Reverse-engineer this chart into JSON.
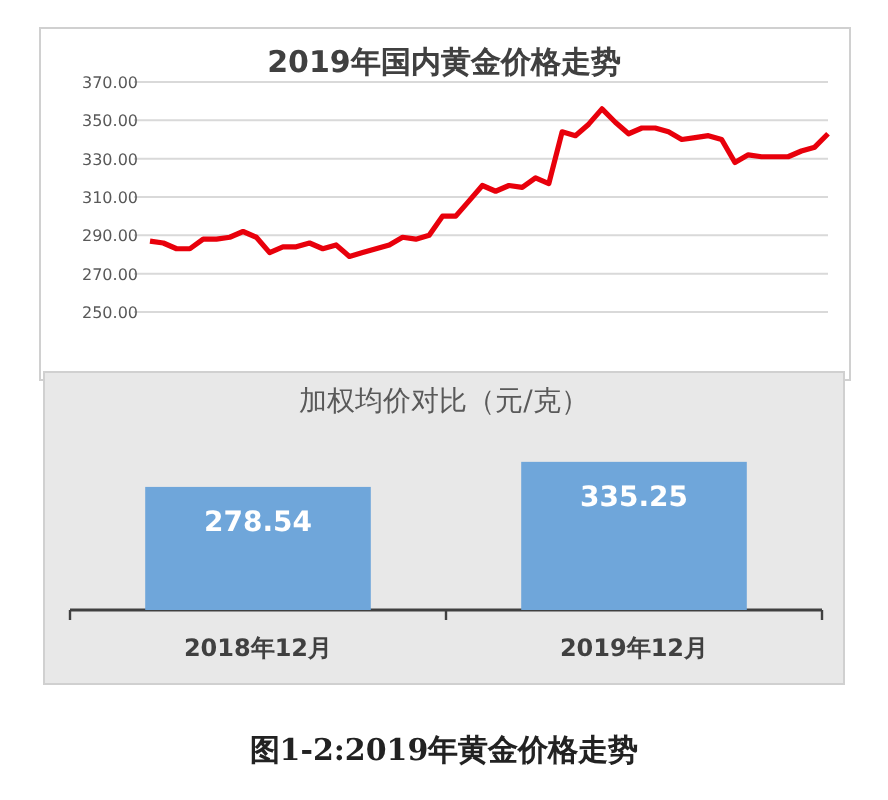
{
  "chart_data": [
    {
      "type": "line",
      "title": "2019年国内黄金价格走势",
      "categories": [
        null,
        null,
        null,
        null,
        null,
        null,
        null,
        null,
        null,
        null,
        null,
        null,
        null,
        null,
        null,
        null,
        null,
        null,
        null,
        null,
        null,
        null,
        null,
        null,
        null,
        null,
        null,
        null,
        null,
        null,
        null,
        null,
        null,
        null,
        null,
        null,
        null,
        null,
        null,
        null,
        null,
        null,
        null,
        null,
        null,
        null,
        null,
        null,
        null,
        null,
        null,
        null
      ],
      "series": [
        {
          "color": "#e8000b",
          "values": [
            287,
            286,
            283,
            283,
            288,
            288,
            289,
            292,
            289,
            281,
            284,
            284,
            286,
            283,
            285,
            279,
            281,
            283,
            285,
            289,
            288,
            290,
            300,
            300,
            308,
            316,
            313,
            316,
            315,
            320,
            317,
            344,
            342,
            348,
            356,
            349,
            343,
            346,
            346,
            344,
            340,
            341,
            342,
            340,
            328,
            332,
            331,
            331,
            331,
            334,
            336,
            343
          ]
        }
      ],
      "ylim": [
        250,
        370
      ],
      "yticks": [
        {
          "value": 250,
          "label": "250.00"
        },
        {
          "value": 270,
          "label": "270.00"
        },
        {
          "value": 290,
          "label": "290.00"
        },
        {
          "value": 310,
          "label": "310.00"
        },
        {
          "value": 330,
          "label": "330.00"
        },
        {
          "value": 350,
          "label": "350.00"
        },
        {
          "value": 370,
          "label": "370.00"
        }
      ],
      "grid": "y",
      "marker": "none",
      "line_style": "solid"
    },
    {
      "type": "bar",
      "title": "加权均价对比（元/克）",
      "categories": [
        "2018年12月",
        "2019年12月"
      ],
      "values": [
        278.54,
        335.25
      ],
      "color": "#6fa6da",
      "data_labels": true,
      "annotations": [
        "图1-2:2019年黄金价格走势"
      ]
    }
  ]
}
